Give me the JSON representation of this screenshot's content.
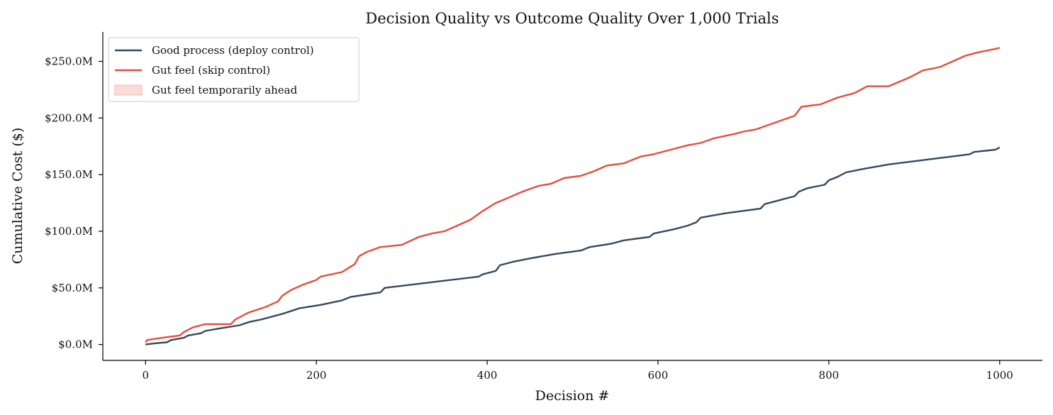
{
  "chart_data": {
    "type": "line",
    "title": "Decision Quality vs Outcome Quality Over 1,000 Trials",
    "xlabel": "Decision #",
    "ylabel": "Cumulative Cost ($)",
    "xlim": [
      -50,
      1050
    ],
    "ylim": [
      -14,
      276
    ],
    "x_ticks": [
      0,
      200,
      400,
      600,
      800,
      1000
    ],
    "x_tick_labels": [
      "0",
      "200",
      "400",
      "600",
      "800",
      "1000"
    ],
    "y_ticks": [
      0,
      50,
      100,
      150,
      200,
      250
    ],
    "y_tick_labels": [
      "$0.0M",
      "$50.0M",
      "$100.0M",
      "$150.0M",
      "$200.0M",
      "$250.0M"
    ],
    "y_unit": "millions of dollars",
    "grid": false,
    "legend_position": "top-left",
    "legend_entries": [
      {
        "label": "Good process (deploy control)",
        "kind": "line",
        "color": "#34495e"
      },
      {
        "label": "Gut feel (skip control)",
        "kind": "line",
        "color": "#e74c3c"
      },
      {
        "label": "Gut feel temporarily ahead",
        "kind": "patch",
        "color": "#fadbd8"
      }
    ],
    "series": [
      {
        "name": "Good process (deploy control)",
        "color": "#34495e",
        "points": [
          [
            0,
            0
          ],
          [
            10,
            1
          ],
          [
            25,
            2
          ],
          [
            30,
            4
          ],
          [
            45,
            6
          ],
          [
            50,
            8
          ],
          [
            65,
            10
          ],
          [
            70,
            12
          ],
          [
            85,
            14
          ],
          [
            110,
            17
          ],
          [
            122,
            20
          ],
          [
            135,
            22
          ],
          [
            145,
            24
          ],
          [
            160,
            27
          ],
          [
            172,
            30
          ],
          [
            180,
            32
          ],
          [
            205,
            35
          ],
          [
            230,
            39
          ],
          [
            240,
            42
          ],
          [
            275,
            46
          ],
          [
            280,
            50
          ],
          [
            390,
            60
          ],
          [
            395,
            62
          ],
          [
            410,
            65
          ],
          [
            415,
            70
          ],
          [
            430,
            73
          ],
          [
            450,
            76
          ],
          [
            480,
            80
          ],
          [
            510,
            83
          ],
          [
            520,
            86
          ],
          [
            545,
            89
          ],
          [
            560,
            92
          ],
          [
            590,
            95
          ],
          [
            595,
            98
          ],
          [
            620,
            102
          ],
          [
            635,
            105
          ],
          [
            645,
            108
          ],
          [
            650,
            112
          ],
          [
            680,
            116
          ],
          [
            720,
            120
          ],
          [
            725,
            124
          ],
          [
            745,
            128
          ],
          [
            760,
            131
          ],
          [
            765,
            135
          ],
          [
            775,
            138
          ],
          [
            795,
            141
          ],
          [
            800,
            145
          ],
          [
            810,
            148
          ],
          [
            820,
            152
          ],
          [
            840,
            155
          ],
          [
            870,
            159
          ],
          [
            965,
            168
          ],
          [
            970,
            170
          ],
          [
            995,
            172
          ],
          [
            1000,
            174
          ]
        ]
      },
      {
        "name": "Gut feel (skip control)",
        "color": "#e74c3c",
        "points": [
          [
            0,
            2
          ],
          [
            2,
            4
          ],
          [
            20,
            6
          ],
          [
            40,
            8
          ],
          [
            45,
            11
          ],
          [
            55,
            15
          ],
          [
            70,
            18
          ],
          [
            100,
            18
          ],
          [
            105,
            22
          ],
          [
            120,
            28
          ],
          [
            140,
            33
          ],
          [
            155,
            38
          ],
          [
            160,
            43
          ],
          [
            170,
            48
          ],
          [
            185,
            53
          ],
          [
            200,
            57
          ],
          [
            205,
            60
          ],
          [
            230,
            64
          ],
          [
            245,
            71
          ],
          [
            250,
            78
          ],
          [
            260,
            82
          ],
          [
            275,
            86
          ],
          [
            300,
            88
          ],
          [
            320,
            95
          ],
          [
            335,
            98
          ],
          [
            350,
            100
          ],
          [
            365,
            105
          ],
          [
            380,
            110
          ],
          [
            395,
            118
          ],
          [
            410,
            125
          ],
          [
            420,
            128
          ],
          [
            435,
            133
          ],
          [
            445,
            136
          ],
          [
            460,
            140
          ],
          [
            475,
            142
          ],
          [
            490,
            147
          ],
          [
            510,
            149
          ],
          [
            525,
            153
          ],
          [
            540,
            158
          ],
          [
            560,
            160
          ],
          [
            570,
            163
          ],
          [
            580,
            166
          ],
          [
            595,
            168
          ],
          [
            615,
            172
          ],
          [
            635,
            176
          ],
          [
            650,
            178
          ],
          [
            665,
            182
          ],
          [
            690,
            186
          ],
          [
            700,
            188
          ],
          [
            715,
            190
          ],
          [
            730,
            194
          ],
          [
            745,
            198
          ],
          [
            760,
            202
          ],
          [
            768,
            210
          ],
          [
            790,
            212
          ],
          [
            810,
            218
          ],
          [
            830,
            222
          ],
          [
            845,
            228
          ],
          [
            870,
            228
          ],
          [
            895,
            236
          ],
          [
            910,
            242
          ],
          [
            930,
            245
          ],
          [
            945,
            250
          ],
          [
            960,
            255
          ],
          [
            975,
            258
          ],
          [
            995,
            261
          ],
          [
            1000,
            262
          ]
        ]
      }
    ]
  }
}
